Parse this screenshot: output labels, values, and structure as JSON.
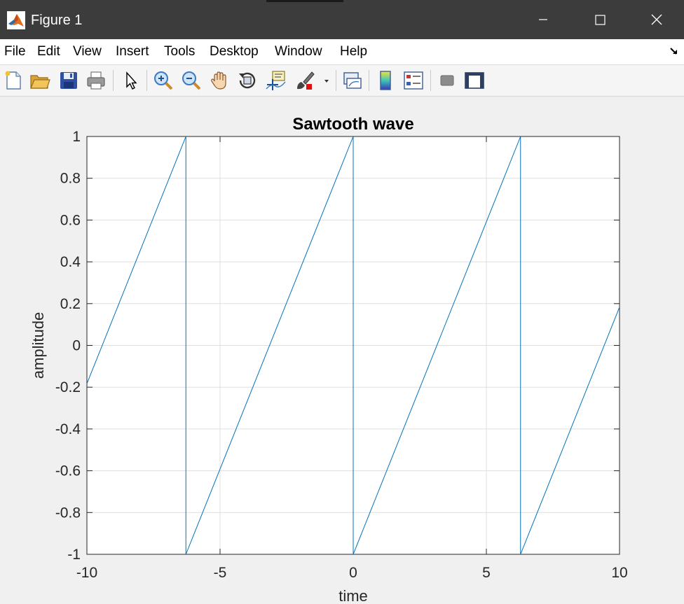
{
  "window": {
    "title": "Figure 1",
    "controls": [
      "minimize",
      "maximize",
      "close"
    ]
  },
  "menu": {
    "items": [
      {
        "label": "File"
      },
      {
        "label": "Edit"
      },
      {
        "label": "View"
      },
      {
        "label": "Insert"
      },
      {
        "label": "Tools"
      },
      {
        "label": "Desktop"
      },
      {
        "label": "Window"
      },
      {
        "label": "Help"
      }
    ]
  },
  "toolbar": {
    "buttons": [
      {
        "name": "new-figure",
        "icon": "new-file-icon"
      },
      {
        "name": "open-file",
        "icon": "folder-open-icon"
      },
      {
        "name": "save-figure",
        "icon": "floppy-disk-icon"
      },
      {
        "name": "print-figure",
        "icon": "printer-icon"
      },
      {
        "name": "edit-plot",
        "icon": "arrow-pointer-icon"
      },
      {
        "name": "zoom-in",
        "icon": "zoom-in-icon"
      },
      {
        "name": "zoom-out",
        "icon": "zoom-out-icon"
      },
      {
        "name": "pan",
        "icon": "hand-icon"
      },
      {
        "name": "rotate-3d",
        "icon": "rotate-icon"
      },
      {
        "name": "data-cursor",
        "icon": "data-tip-icon"
      },
      {
        "name": "brush",
        "icon": "brush-icon"
      },
      {
        "name": "link-plot",
        "icon": "link-plot-icon"
      },
      {
        "name": "insert-colorbar",
        "icon": "colorbar-icon"
      },
      {
        "name": "insert-legend",
        "icon": "legend-icon"
      },
      {
        "name": "hide-plot-tools",
        "icon": "hide-tools-icon"
      },
      {
        "name": "show-plot-tools",
        "icon": "show-tools-icon"
      }
    ]
  },
  "chart_data": {
    "type": "line",
    "title": "Sawtooth wave",
    "xlabel": "time",
    "ylabel": "amplitude",
    "xlim": [
      -10,
      10
    ],
    "ylim": [
      -1,
      1
    ],
    "xticks": [
      -10,
      -5,
      0,
      5,
      10
    ],
    "yticks": [
      -1,
      -0.8,
      -0.6,
      -0.4,
      -0.2,
      0,
      0.2,
      0.4,
      0.6,
      0.8,
      1
    ],
    "xtick_labels": [
      "-10",
      "-5",
      "0",
      "5",
      "10"
    ],
    "ytick_labels": [
      "-1",
      "-0.8",
      "-0.6",
      "-0.4",
      "-0.2",
      "0",
      "0.2",
      "0.4",
      "0.6",
      "0.8",
      "1"
    ],
    "grid": true,
    "line_color": "#0072bd",
    "series": [
      {
        "x": [
          -10,
          -6.283,
          -6.283,
          0,
          0,
          6.283,
          6.283,
          10
        ],
        "y": [
          -0.183,
          1,
          -1,
          1,
          -1,
          1,
          -1,
          0.183
        ]
      }
    ]
  }
}
